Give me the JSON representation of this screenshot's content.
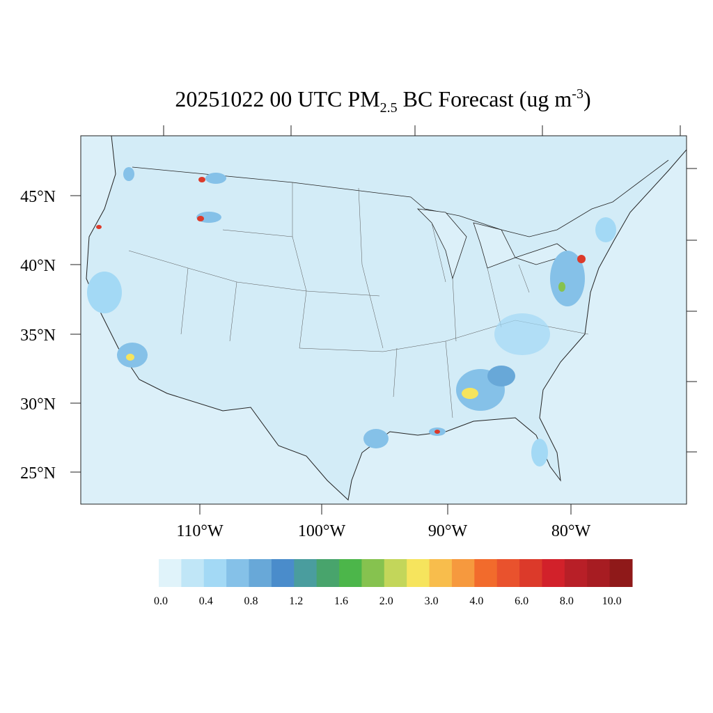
{
  "title": {
    "main": "20251022 00 UTC PM",
    "subscript": "2.5",
    "rest": " BC Forecast (ug m",
    "superscript": "-3",
    "close": ")"
  },
  "lat_labels": [
    "45°N",
    "40°N",
    "35°N",
    "30°N",
    "25°N"
  ],
  "lon_labels": [
    "110°W",
    "100°W",
    "90°W",
    "80°W"
  ],
  "colorbar": {
    "colors": [
      "#e0f3fa",
      "#c0e6f7",
      "#a3d9f5",
      "#85c1e8",
      "#68a8d8",
      "#4a8ccb",
      "#4a9d9e",
      "#48a46c",
      "#4cb64a",
      "#86c24f",
      "#c3d65a",
      "#f6e45d",
      "#f8bd4c",
      "#f6993e",
      "#f26b2c",
      "#e9522d",
      "#dc3a2a",
      "#d2212a",
      "#b81f27",
      "#a71c22",
      "#8f1919"
    ],
    "labels": [
      "0.0",
      "0.4",
      "0.8",
      "1.2",
      "1.6",
      "2.0",
      "3.0",
      "4.0",
      "6.0",
      "8.0",
      "10.0"
    ]
  }
}
